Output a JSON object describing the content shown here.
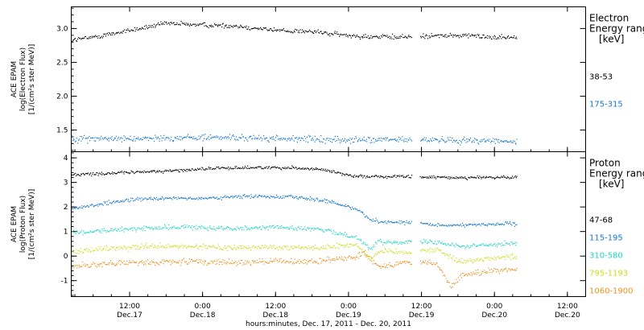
{
  "chart_data": {
    "type": "scatter",
    "xlabel": "hours:minutes, Dec. 17, 2011 - Dec. 20, 2011",
    "x_ticks": [
      {
        "t": 0.5,
        "time": "12:00",
        "date": "Dec.17"
      },
      {
        "t": 1.0,
        "time": "0:00",
        "date": "Dec.18"
      },
      {
        "t": 1.5,
        "time": "12:00",
        "date": "Dec.18"
      },
      {
        "t": 2.0,
        "time": "0:00",
        "date": "Dec.19"
      },
      {
        "t": 2.5,
        "time": "12:00",
        "date": "Dec.19"
      },
      {
        "t": 3.0,
        "time": "0:00",
        "date": "Dec.20"
      },
      {
        "t": 3.5,
        "time": "12:00",
        "date": "Dec.20"
      }
    ],
    "panels": [
      {
        "ylabel": [
          "ACE EPAM",
          "log(Electron Flux)",
          "[1/(cm²s ster MeV)]"
        ],
        "yticks": [
          1.5,
          2.0,
          2.5,
          3.0
        ],
        "ylim": [
          1.18,
          3.32
        ],
        "legend_title": [
          "Electron",
          "Energy ranges",
          "[keV]"
        ],
        "series": [
          {
            "name": "38-53",
            "color": "#000000",
            "points": [
              [
                0.0,
                2.82
              ],
              [
                0.2,
                2.86
              ],
              [
                0.35,
                2.92
              ],
              [
                0.5,
                2.98
              ],
              [
                0.75,
                3.08
              ],
              [
                1.0,
                3.06
              ],
              [
                1.25,
                3.04
              ],
              [
                1.5,
                2.98
              ],
              [
                1.75,
                2.96
              ],
              [
                2.0,
                2.9
              ],
              [
                2.2,
                2.88
              ],
              [
                2.4,
                2.88
              ],
              [
                2.55,
                2.9
              ],
              [
                2.8,
                2.9
              ],
              [
                3.0,
                2.88
              ],
              [
                3.15,
                2.88
              ]
            ]
          },
          {
            "name": "175-315",
            "color": "#1478d0",
            "points": [
              [
                0.0,
                1.38
              ],
              [
                0.5,
                1.38
              ],
              [
                1.0,
                1.4
              ],
              [
                1.5,
                1.38
              ],
              [
                2.0,
                1.36
              ],
              [
                2.4,
                1.36
              ],
              [
                2.6,
                1.36
              ],
              [
                3.0,
                1.35
              ],
              [
                3.15,
                1.33
              ]
            ]
          }
        ]
      },
      {
        "ylabel": [
          "ACE EPAM",
          "log(Proton Flux)",
          "[1/(cm²s ster MeV)]"
        ],
        "yticks": [
          -1,
          0,
          1,
          2,
          3,
          4
        ],
        "ylim": [
          -1.65,
          4.25
        ],
        "legend_title": [
          "Proton",
          "Energy ranges",
          "[keV]"
        ],
        "series": [
          {
            "name": "47-68",
            "color": "#000000",
            "points": [
              [
                0.0,
                3.3
              ],
              [
                0.3,
                3.38
              ],
              [
                0.6,
                3.45
              ],
              [
                0.9,
                3.52
              ],
              [
                1.0,
                3.58
              ],
              [
                1.3,
                3.62
              ],
              [
                1.6,
                3.62
              ],
              [
                1.8,
                3.55
              ],
              [
                1.9,
                3.45
              ],
              [
                2.0,
                3.3
              ],
              [
                2.2,
                3.25
              ],
              [
                2.4,
                3.25
              ],
              [
                2.6,
                3.22
              ],
              [
                3.0,
                3.22
              ],
              [
                3.15,
                3.22
              ]
            ]
          },
          {
            "name": "115-195",
            "color": "#1478d0",
            "points": [
              [
                0.0,
                1.85
              ],
              [
                0.2,
                2.05
              ],
              [
                0.5,
                2.3
              ],
              [
                0.8,
                2.4
              ],
              [
                1.0,
                2.35
              ],
              [
                1.3,
                2.45
              ],
              [
                1.6,
                2.45
              ],
              [
                1.85,
                2.25
              ],
              [
                2.05,
                1.95
              ],
              [
                2.15,
                1.5
              ],
              [
                2.25,
                1.4
              ],
              [
                2.45,
                1.4
              ],
              [
                2.6,
                1.25
              ],
              [
                3.0,
                1.32
              ],
              [
                3.15,
                1.32
              ]
            ]
          },
          {
            "name": "310-580",
            "color": "#1fd6c8",
            "points": [
              [
                0.0,
                0.9
              ],
              [
                0.3,
                1.05
              ],
              [
                0.6,
                1.15
              ],
              [
                0.9,
                1.2
              ],
              [
                1.2,
                1.15
              ],
              [
                1.5,
                1.2
              ],
              [
                1.8,
                1.1
              ],
              [
                2.05,
                0.8
              ],
              [
                2.15,
                0.3
              ],
              [
                2.2,
                0.6
              ],
              [
                2.3,
                0.6
              ],
              [
                2.45,
                0.6
              ],
              [
                2.6,
                0.6
              ],
              [
                2.8,
                0.4
              ],
              [
                3.0,
                0.5
              ],
              [
                3.15,
                0.55
              ]
            ]
          },
          {
            "name": "795-1193",
            "color": "#c8e01c",
            "points": [
              [
                0.0,
                0.1
              ],
              [
                0.3,
                0.3
              ],
              [
                0.6,
                0.4
              ],
              [
                0.9,
                0.4
              ],
              [
                1.2,
                0.35
              ],
              [
                1.5,
                0.4
              ],
              [
                1.8,
                0.35
              ],
              [
                2.05,
                0.5
              ],
              [
                2.15,
                -0.1
              ],
              [
                2.2,
                0.2
              ],
              [
                2.45,
                0.2
              ],
              [
                2.6,
                0.3
              ],
              [
                2.75,
                -0.2
              ],
              [
                3.0,
                -0.05
              ],
              [
                3.15,
                0.0
              ]
            ]
          },
          {
            "name": "1060-1900",
            "color": "#f0901c",
            "points": [
              [
                0.0,
                -0.45
              ],
              [
                0.3,
                -0.3
              ],
              [
                0.6,
                -0.25
              ],
              [
                0.9,
                -0.2
              ],
              [
                1.2,
                -0.25
              ],
              [
                1.5,
                -0.2
              ],
              [
                1.8,
                -0.2
              ],
              [
                2.05,
                0.0
              ],
              [
                2.1,
                0.2
              ],
              [
                2.2,
                -0.4
              ],
              [
                2.45,
                -0.2
              ],
              [
                2.6,
                -0.3
              ],
              [
                2.7,
                -1.2
              ],
              [
                2.8,
                -0.7
              ],
              [
                3.0,
                -0.6
              ],
              [
                3.15,
                -0.5
              ]
            ]
          }
        ]
      }
    ]
  }
}
